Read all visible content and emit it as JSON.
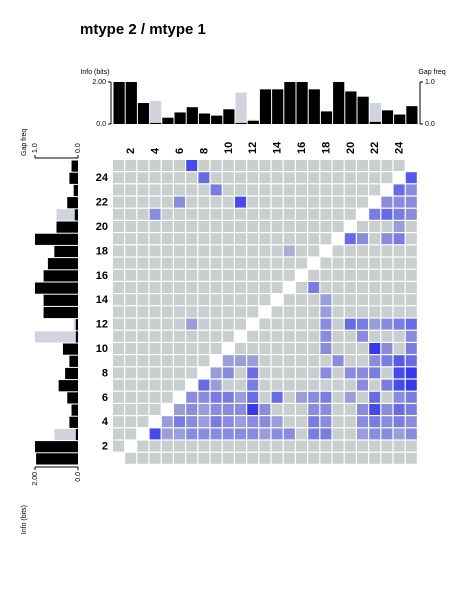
{
  "chart_data": {
    "type": "heatmap",
    "title": "mtype 2 / mtype 1",
    "categories": [
      null,
      "2",
      null,
      "4",
      null,
      "6",
      null,
      "8",
      null,
      "10",
      null,
      "12",
      null,
      "14",
      null,
      "16",
      null,
      "18",
      null,
      "20",
      null,
      "22",
      null,
      "24",
      null
    ],
    "low_color": "#c9cfcf",
    "high_color": "#2828f0",
    "matrix": [
      [
        null,
        0,
        0,
        0,
        0,
        0,
        0,
        0,
        0,
        0,
        0,
        0,
        0,
        0,
        0,
        0,
        0,
        0,
        0,
        0,
        0,
        0,
        0,
        0,
        0
      ],
      [
        0,
        null,
        0,
        0,
        0,
        0,
        0,
        0,
        0,
        0,
        0,
        0,
        0,
        0,
        0,
        0,
        0,
        0,
        0,
        0,
        0,
        0,
        0,
        0,
        0
      ],
      [
        0,
        0,
        null,
        0.8,
        0.3,
        0.3,
        0.4,
        0.4,
        0.4,
        0.4,
        0.4,
        0.4,
        0.3,
        0.4,
        0.4,
        0,
        0.5,
        0.5,
        0,
        0,
        0.3,
        0.4,
        0.4,
        0.3,
        0.4
      ],
      [
        0,
        0,
        0,
        null,
        0.3,
        0.5,
        0.4,
        0.3,
        0.5,
        0.4,
        0.3,
        0.4,
        0.4,
        0.3,
        0,
        0,
        0.5,
        0.4,
        0,
        0,
        0.4,
        0.5,
        0.4,
        0.5,
        0.4
      ],
      [
        0,
        0,
        0,
        0,
        null,
        0.3,
        0.4,
        0.3,
        0.4,
        0.4,
        0.4,
        0.9,
        0.4,
        0,
        0,
        0,
        0.4,
        0.4,
        0,
        0,
        0.4,
        0.8,
        0.4,
        0.6,
        0.5
      ],
      [
        0,
        0,
        0,
        0,
        0,
        null,
        0.4,
        0.4,
        0.5,
        0.5,
        0.3,
        0.6,
        0,
        0.6,
        0,
        0.3,
        0.4,
        0.5,
        0,
        0.3,
        0,
        0.6,
        0,
        0.4,
        0.5
      ],
      [
        0,
        0,
        0,
        0,
        0,
        0,
        null,
        0.6,
        0.3,
        0,
        0,
        0.5,
        0,
        0,
        0,
        0,
        0,
        0,
        0,
        0,
        0.4,
        0,
        0.5,
        0.8,
        0.9
      ],
      [
        0,
        0,
        0,
        0,
        0,
        0,
        0,
        null,
        0.3,
        0.4,
        0,
        0.6,
        0,
        0,
        0,
        0,
        0,
        0.4,
        0,
        0.4,
        0.4,
        0.5,
        0,
        0.8,
        0.9
      ],
      [
        0,
        0,
        0,
        0,
        0,
        0,
        0,
        0,
        null,
        0.3,
        0.3,
        0.3,
        0,
        0,
        0,
        0,
        0,
        0,
        0.4,
        0,
        0,
        0.4,
        0.5,
        0.7,
        0.6
      ],
      [
        0,
        0,
        0,
        0,
        0,
        0,
        0,
        0,
        0,
        null,
        0,
        0,
        0,
        0,
        0,
        0,
        0,
        0.4,
        0,
        0,
        0,
        0.9,
        0.4,
        0,
        0.5
      ],
      [
        0,
        0,
        0,
        0,
        0,
        0,
        0,
        0,
        0,
        0,
        null,
        0,
        0,
        0,
        0,
        0,
        0,
        0.4,
        0,
        0,
        0.4,
        0,
        0,
        0,
        0.4
      ],
      [
        0,
        0,
        0,
        0,
        0,
        0,
        0.3,
        0,
        0,
        0,
        0,
        null,
        0,
        0,
        0,
        0,
        0,
        0.4,
        0,
        0.6,
        0.5,
        0.3,
        0.4,
        0.5,
        0.6
      ],
      [
        0,
        0,
        0,
        0,
        0,
        0,
        0,
        0,
        0,
        0,
        0,
        0,
        null,
        0,
        0,
        0,
        0,
        0.3,
        0,
        0,
        0,
        0,
        0,
        0,
        0
      ],
      [
        0,
        0,
        0,
        0,
        0,
        0,
        0,
        0,
        0,
        0,
        0,
        0,
        0,
        null,
        0,
        0,
        0,
        0.3,
        0,
        0,
        0,
        0,
        0,
        0,
        0
      ],
      [
        0,
        0,
        0,
        0,
        0,
        0,
        0,
        0,
        0,
        0,
        0,
        0,
        0,
        0,
        null,
        0,
        0.5,
        0,
        0,
        0,
        0,
        0,
        0,
        0,
        0
      ],
      [
        0,
        0,
        0,
        0,
        0,
        0,
        0,
        0,
        0,
        0,
        0,
        0,
        0,
        0,
        0,
        null,
        0,
        0,
        0,
        0,
        0,
        0,
        0,
        0,
        0
      ],
      [
        0,
        0,
        0,
        0,
        0,
        0,
        0,
        0,
        0,
        0,
        0,
        0,
        0,
        0,
        0,
        0,
        null,
        0,
        0,
        0,
        0,
        0,
        0,
        0,
        0
      ],
      [
        0,
        0,
        0,
        0,
        0,
        0,
        0,
        0,
        0,
        0,
        0,
        0,
        0,
        0,
        0.2,
        0,
        0,
        null,
        0,
        0,
        0,
        0,
        0,
        0,
        0
      ],
      [
        0,
        0,
        0,
        0,
        0,
        0,
        0,
        0,
        0,
        0,
        0,
        0,
        0,
        0,
        0,
        0,
        0,
        0,
        null,
        0.6,
        0.4,
        0,
        0.4,
        0.5,
        0
      ],
      [
        0,
        0,
        0,
        0,
        0,
        0,
        0,
        0,
        0,
        0,
        0,
        0,
        0,
        0,
        0,
        0,
        0,
        0,
        0,
        null,
        0,
        0,
        0,
        0.3,
        0
      ],
      [
        0,
        0,
        0,
        0.4,
        0,
        0,
        0,
        0,
        0,
        0,
        0,
        0,
        0,
        0,
        0,
        0,
        0,
        0,
        0,
        0,
        null,
        0.5,
        0.6,
        0.5,
        0.4
      ],
      [
        0,
        0,
        0,
        0,
        0,
        0.4,
        0,
        0,
        0,
        0,
        0.8,
        0,
        0,
        0,
        0,
        0,
        0,
        0,
        0,
        0,
        0,
        null,
        0.4,
        0.4,
        0.4
      ],
      [
        0,
        0,
        0,
        0,
        0,
        0,
        0,
        0,
        0.5,
        0,
        0,
        0,
        0,
        0,
        0,
        0,
        0,
        0,
        0,
        0,
        0,
        0,
        null,
        0.6,
        0.4
      ],
      [
        0,
        0,
        0,
        0,
        0,
        0,
        0,
        0.6,
        0,
        0,
        0,
        0,
        0,
        0,
        0,
        0,
        0,
        0,
        0,
        0,
        0,
        0,
        0,
        null,
        0.7
      ],
      [
        0,
        0,
        0,
        0,
        0,
        0,
        0.8,
        0,
        0,
        0,
        0,
        0,
        0,
        0,
        0,
        0,
        0,
        0,
        0,
        0,
        0,
        0,
        0,
        0,
        null
      ]
    ],
    "top_bars": {
      "label": "Info (bits)",
      "ylim": [
        0,
        2
      ],
      "yticks": [
        {
          "value": 2,
          "label": "2.00"
        },
        {
          "value": 0,
          "label": "0.0"
        }
      ],
      "color": "#000000",
      "values": [
        2.0,
        2.0,
        1.0,
        0.05,
        0.3,
        0.55,
        0.8,
        0.5,
        0.4,
        0.7,
        0.05,
        0.15,
        1.65,
        1.65,
        2.0,
        2.0,
        1.65,
        0.6,
        2.0,
        1.55,
        1.3,
        0.1,
        0.65,
        0.45,
        0.85
      ],
      "gap": {
        "label": "Gap freq",
        "ylim": [
          0,
          1
        ],
        "yticks": [
          {
            "value": 1,
            "label": "1.0"
          },
          {
            "value": 0,
            "label": "0.0"
          }
        ],
        "color": "#d0d4dc",
        "values": [
          0,
          0,
          0,
          0.55,
          0,
          0,
          0,
          0,
          0,
          0,
          0.75,
          0.1,
          0,
          0,
          0,
          0,
          0,
          0,
          0,
          0,
          0,
          0.5,
          0,
          0,
          0
        ]
      }
    },
    "left_bars": {
      "label": "Info (bits)",
      "xlim": [
        0,
        2
      ],
      "xticks": [
        {
          "value": 2,
          "label": "2.00"
        },
        {
          "value": 0,
          "label": "0.0"
        }
      ],
      "color": "#000000",
      "values": [
        1.95,
        2.0,
        0.1,
        0.4,
        0.3,
        0.5,
        0.9,
        0.6,
        0.4,
        0.7,
        0.1,
        0.1,
        1.6,
        1.6,
        2.0,
        1.6,
        1.4,
        1.1,
        2.0,
        1.0,
        0.15,
        0.5,
        0.2,
        0.4,
        0.3
      ],
      "gap": {
        "label": "Gap freq",
        "xlim": [
          0,
          1
        ],
        "xticks": [
          {
            "value": 1,
            "label": "1.0"
          },
          {
            "value": 0,
            "label": "0.0"
          }
        ],
        "color": "#d0d4dc",
        "values": [
          0,
          0,
          0.55,
          0,
          0,
          0,
          0,
          0,
          0,
          0,
          1.0,
          0.1,
          0,
          0,
          0,
          0,
          0,
          0,
          0,
          0,
          0.5,
          0,
          0,
          0,
          0
        ]
      }
    }
  }
}
